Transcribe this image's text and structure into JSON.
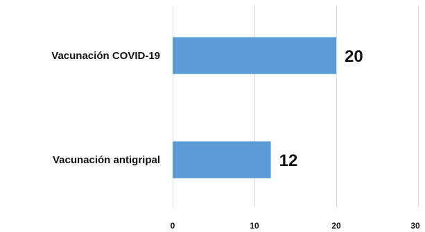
{
  "chart_data": {
    "type": "bar",
    "orientation": "horizontal",
    "categories": [
      "Vacunación COVID-19",
      "Vacunación antigripal"
    ],
    "values": [
      20,
      12
    ],
    "title": "",
    "xlabel": "",
    "ylabel": "",
    "xlim": [
      0,
      30
    ],
    "x_ticks": [
      "0",
      "10",
      "20",
      "30"
    ],
    "grid": "vertical",
    "legend": "none",
    "bar_color": "#5b9bd5",
    "grid_color": "#d9d9d9",
    "text_color": "#111111"
  }
}
